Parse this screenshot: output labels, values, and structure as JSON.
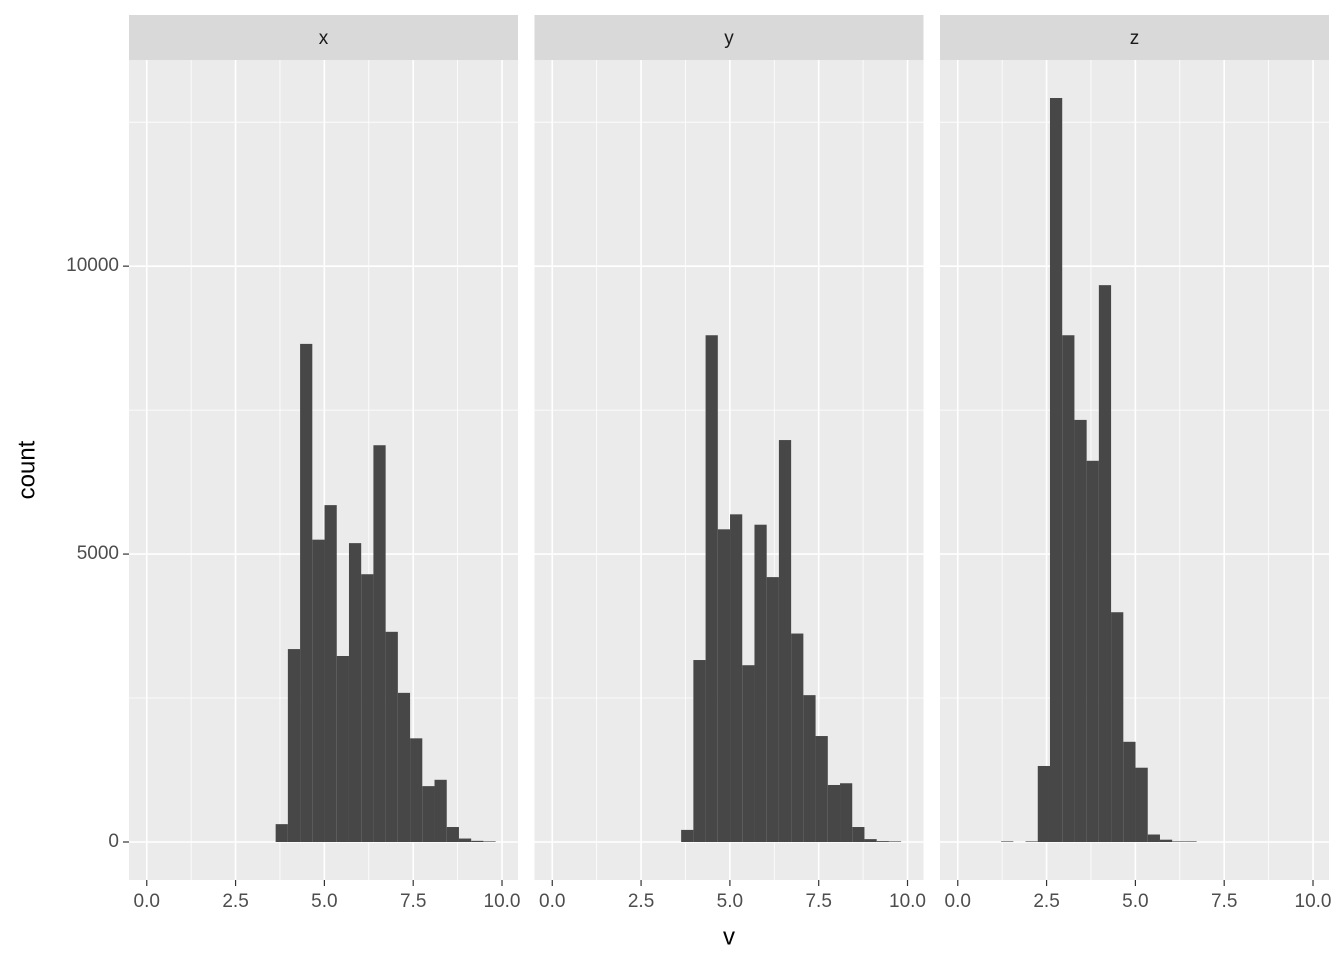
{
  "chart_data": [
    {
      "type": "histogram",
      "title": "x",
      "color": "#474747",
      "grid": true,
      "bins": [
        1.22,
        1.564,
        1.908,
        2.252,
        2.596,
        2.94,
        3.284,
        3.628,
        3.972,
        4.316,
        4.66,
        5.004,
        5.348,
        5.692,
        6.036,
        6.38,
        6.724,
        7.068,
        7.412,
        7.756,
        8.1,
        8.444,
        8.788,
        9.132,
        9.476,
        9.82
      ],
      "values": [
        0,
        0,
        0,
        0,
        0,
        0,
        0,
        310,
        3350,
        8650,
        5250,
        5850,
        3230,
        5190,
        4650,
        6890,
        3650,
        2590,
        1800,
        970,
        1080,
        260,
        60,
        20,
        10
      ],
      "xlim": [
        -0.5,
        10.45
      ],
      "ylim": [
        -660,
        13580
      ],
      "xticks": [
        {
          "value": 0,
          "label": "0.0"
        },
        2.5,
        {
          "value": 5,
          "label": "5.0"
        },
        7.5,
        {
          "value": 10,
          "label": "10.0"
        }
      ],
      "minor_xticks": [
        1.25,
        3.75,
        6.25,
        8.75
      ],
      "yticks": [
        0,
        5000,
        10000
      ],
      "minor_yticks": [
        2500,
        7500,
        12500
      ]
    },
    {
      "type": "histogram",
      "title": "y",
      "color": "#474747",
      "grid": true,
      "bins": [
        1.22,
        1.564,
        1.908,
        2.252,
        2.596,
        2.94,
        3.284,
        3.628,
        3.972,
        4.316,
        4.66,
        5.004,
        5.348,
        5.692,
        6.036,
        6.38,
        6.724,
        7.068,
        7.412,
        7.756,
        8.1,
        8.444,
        8.788,
        9.132,
        9.476,
        9.82
      ],
      "values": [
        0,
        0,
        0,
        0,
        0,
        0,
        0,
        210,
        3160,
        8800,
        5430,
        5690,
        3070,
        5510,
        4600,
        6980,
        3620,
        2550,
        1840,
        990,
        1020,
        260,
        50,
        15,
        10
      ],
      "xlim": [
        -0.5,
        10.45
      ],
      "ylim": [
        -660,
        13580
      ],
      "xticks": [
        {
          "value": 0,
          "label": "0.0"
        },
        2.5,
        {
          "value": 5,
          "label": "5.0"
        },
        7.5,
        {
          "value": 10,
          "label": "10.0"
        }
      ],
      "minor_xticks": [
        1.25,
        3.75,
        6.25,
        8.75
      ],
      "yticks": [
        0,
        5000,
        10000
      ],
      "minor_yticks": [
        2500,
        7500,
        12500
      ]
    },
    {
      "type": "histogram",
      "title": "z",
      "color": "#474747",
      "grid": true,
      "bins": [
        1.22,
        1.564,
        1.908,
        2.252,
        2.596,
        2.94,
        3.284,
        3.628,
        3.972,
        4.316,
        4.66,
        5.004,
        5.348,
        5.692,
        6.036,
        6.38,
        6.724,
        7.068,
        7.412,
        7.756,
        8.1,
        8.444,
        8.788,
        9.132,
        9.476,
        9.82
      ],
      "values": [
        10,
        0,
        10,
        1320,
        12920,
        8800,
        7330,
        6620,
        9670,
        3990,
        1740,
        1290,
        130,
        40,
        10,
        10,
        0,
        0,
        0,
        0,
        0,
        0,
        0,
        0,
        0
      ],
      "xlim": [
        -0.5,
        10.45
      ],
      "ylim": [
        -660,
        13580
      ],
      "xticks": [
        {
          "value": 0,
          "label": "0.0"
        },
        2.5,
        {
          "value": 5,
          "label": "5.0"
        },
        7.5,
        {
          "value": 10,
          "label": "10.0"
        }
      ],
      "minor_xticks": [
        1.25,
        3.75,
        6.25,
        8.75
      ],
      "yticks": [
        0,
        5000,
        10000
      ],
      "minor_yticks": [
        2500,
        7500,
        12500
      ]
    }
  ],
  "xlabel": "v",
  "ylabel": "count"
}
